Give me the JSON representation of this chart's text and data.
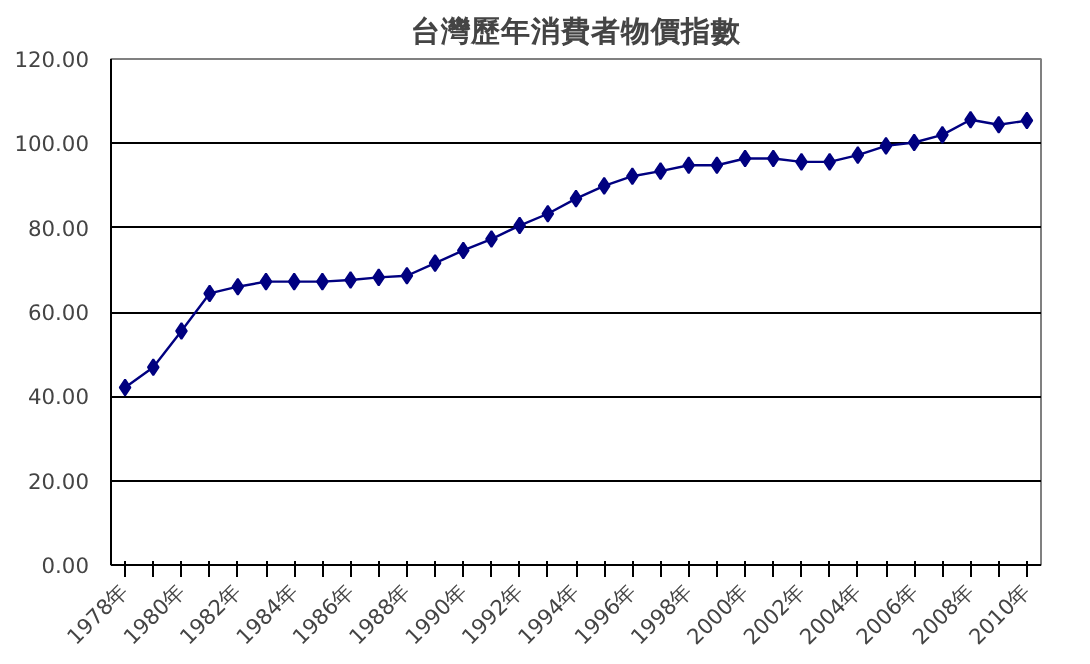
{
  "chart_data": {
    "type": "line",
    "title": "台灣歷年消費者物價指數",
    "categories": [
      "1978年",
      null,
      "1980年",
      null,
      "1982年",
      null,
      "1984年",
      null,
      "1986年",
      null,
      "1988年",
      null,
      "1990年",
      null,
      "1992年",
      null,
      "1994年",
      null,
      "1996年",
      null,
      "1998年",
      null,
      "2000年",
      null,
      "2002年",
      null,
      "2004年",
      null,
      "2006年",
      null,
      "2008年",
      null,
      "2010年"
    ],
    "series": [
      {
        "color": "#000080",
        "values": [
          42.1,
          46.9,
          55.5,
          64.4,
          66.0,
          67.2,
          67.2,
          67.2,
          67.6,
          68.2,
          68.6,
          71.6,
          74.6,
          77.3,
          80.5,
          83.3,
          86.9,
          89.9,
          92.2,
          93.4,
          94.8,
          94.8,
          96.4,
          96.4,
          95.6,
          95.6,
          97.2,
          99.4,
          100.2,
          102.0,
          105.6,
          104.4,
          105.4
        ]
      }
    ],
    "ylim": [
      0,
      120
    ],
    "yticks": [
      {
        "value": 0,
        "label": "0.00"
      },
      {
        "value": 20,
        "label": "20.00"
      },
      {
        "value": 40,
        "label": "40.00"
      },
      {
        "value": 60,
        "label": "60.00"
      },
      {
        "value": 80,
        "label": "80.00"
      },
      {
        "value": 100,
        "label": "100.00"
      },
      {
        "value": 120,
        "label": "120.00"
      }
    ],
    "grid": "y",
    "marker": "diamond",
    "line_style": "solid"
  }
}
